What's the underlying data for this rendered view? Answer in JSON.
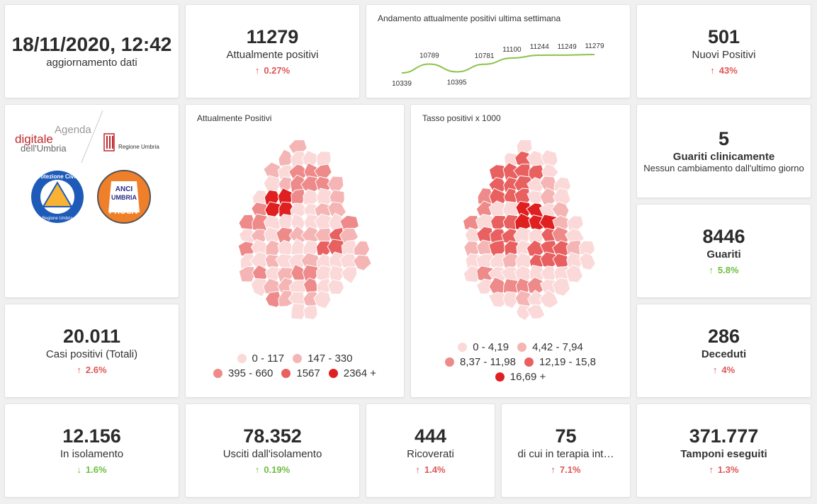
{
  "update": {
    "datetime": "18/11/2020, 12:42",
    "label": "aggiornamento dati"
  },
  "attualmente_positivi": {
    "value": "11279",
    "label": "Attualmente positivi",
    "delta": "0.27%",
    "direction": "up"
  },
  "trend": {
    "title": "Andamento attualmente positivi ultima settimana",
    "labels": [
      "10339",
      "10789",
      "10395",
      "10781",
      "11100",
      "11244",
      "11249",
      "11279"
    ]
  },
  "nuovi_positivi": {
    "value": "501",
    "label": "Nuovi Positivi",
    "delta": "43%",
    "direction": "up"
  },
  "logos": {
    "agenda_line1": "Agenda",
    "agenda_line2": "digitale",
    "agenda_line3": "dell'Umbria",
    "regione": "Regione Umbria",
    "protezione_top": "Protezione Civile",
    "protezione_bottom": "Regione Umbria",
    "anci_line1": "ANCI",
    "anci_line2": "UMBRIA",
    "anci_line3": "PROCIV"
  },
  "map_positivi": {
    "title": "Attualmente Positivi",
    "legend": [
      {
        "label": "0 - 117",
        "color": "#fbd9d9"
      },
      {
        "label": "147 - 330",
        "color": "#f5b5b5"
      },
      {
        "label": "395 - 660",
        "color": "#ee8a8a"
      },
      {
        "label": "1567",
        "color": "#e86060"
      },
      {
        "label": "2364 +",
        "color": "#e02020"
      }
    ]
  },
  "map_tasso": {
    "title": "Tasso positivi x 1000",
    "legend": [
      {
        "label": "0 - 4,19",
        "color": "#fbd9d9"
      },
      {
        "label": "4,42 - 7,94",
        "color": "#f5b5b5"
      },
      {
        "label": "8,37 - 11,98",
        "color": "#ee8a8a"
      },
      {
        "label": "12,19 - 15,8",
        "color": "#e86060"
      },
      {
        "label": "16,69 +",
        "color": "#e02020"
      }
    ]
  },
  "guariti_clinicamente": {
    "value": "5",
    "label": "Guariti clinicamente",
    "sub": "Nessun cambiamento dall'ultimo giorno"
  },
  "guariti": {
    "value": "8446",
    "label": "Guariti",
    "delta": "5.8%",
    "direction": "up"
  },
  "casi_totali": {
    "value": "20.011",
    "label": "Casi positivi (Totali)",
    "delta": "2.6%",
    "direction": "up"
  },
  "deceduti": {
    "value": "286",
    "label": "Deceduti",
    "delta": "4%",
    "direction": "up"
  },
  "isolamento": {
    "value": "12.156",
    "label": "In isolamento",
    "delta": "1.6%",
    "direction": "down"
  },
  "usciti": {
    "value": "78.352",
    "label": "Usciti dall'isolamento",
    "delta": "0.19%",
    "direction": "up"
  },
  "ricoverati": {
    "value": "444",
    "label": "Ricoverati",
    "delta": "1.4%",
    "direction": "up"
  },
  "terapia": {
    "value": "75",
    "label": "di cui in terapia int…",
    "delta": "7.1%",
    "direction": "up"
  },
  "tamponi": {
    "value": "371.777",
    "label": "Tamponi eseguiti",
    "delta": "1.3%",
    "direction": "up"
  },
  "chart_data": {
    "type": "line",
    "title": "Andamento attualmente positivi ultima settimana",
    "series": [
      {
        "values": [
          10339,
          10789,
          10395,
          10781,
          11100,
          11244,
          11249,
          11279
        ]
      }
    ]
  },
  "colors": {
    "up_bad": "#e05555",
    "up_good": "#6cbf3f",
    "line": "#8bc34a",
    "accent_red": "#e02020"
  },
  "icons": {
    "up": "arrow-up-icon",
    "down": "arrow-down-icon"
  }
}
